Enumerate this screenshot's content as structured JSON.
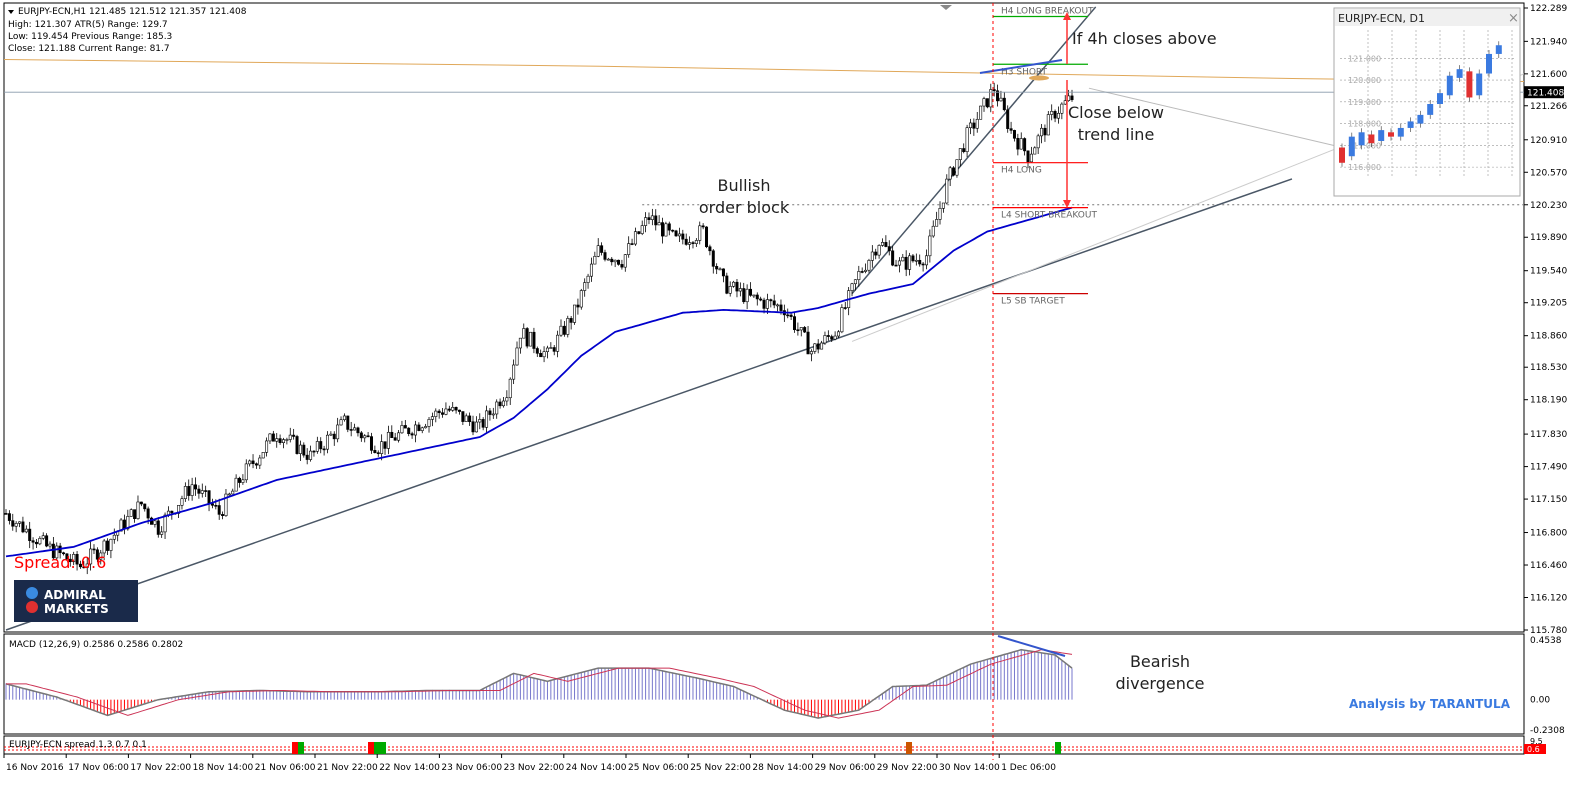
{
  "header": {
    "symbol_line": "EURJPY-ECN,H1  121.485 121.512 121.357 121.408",
    "line2": "High:  121.307   ATR(5) Range: 129.7",
    "line3": "Low:   119.454   Previous Range: 185.3",
    "line4": "Close: 121.188   Current Range: 81.7"
  },
  "colors": {
    "candle": "#000000",
    "ma": "#0000cc",
    "trend": "#4a5766",
    "orange": "#e0a85a",
    "annot_red": "#ff0000",
    "annot_blue": "#3355cc",
    "macd_pos": "#7777cc",
    "macd_neg": "#ff0000",
    "signal": "#cc3355",
    "spread_red": "#ff0000",
    "brand_bg": "#1a2a4a",
    "tarantula": "#3a7ae0"
  },
  "chart_data": {
    "type": "candlestick",
    "symbol": "EURJPY-ECN",
    "timeframe": "H1",
    "ylim": [
      115.78,
      122.289
    ],
    "yticks": [
      "122.289",
      "121.940",
      "121.600",
      "121.266",
      "120.910",
      "120.570",
      "120.230",
      "119.890",
      "119.540",
      "119.205",
      "118.860",
      "118.530",
      "118.190",
      "117.830",
      "117.490",
      "117.150",
      "116.800",
      "116.460",
      "116.120",
      "115.780"
    ],
    "current_price": "121.408",
    "xticks": [
      "16 Nov 2016",
      "17 Nov 06:00",
      "17 Nov 22:00",
      "18 Nov 14:00",
      "21 Nov 06:00",
      "21 Nov 22:00",
      "22 Nov 14:00",
      "23 Nov 06:00",
      "23 Nov 22:00",
      "24 Nov 14:00",
      "25 Nov 06:00",
      "25 Nov 22:00",
      "28 Nov 14:00",
      "29 Nov 06:00",
      "29 Nov 22:00",
      "30 Nov 14:00",
      "1 Dec 06:00"
    ],
    "price_path": [
      [
        0,
        117.0
      ],
      [
        12,
        116.65
      ],
      [
        22,
        116.45
      ],
      [
        30,
        116.7
      ],
      [
        40,
        117.1
      ],
      [
        45,
        116.85
      ],
      [
        55,
        117.3
      ],
      [
        63,
        117.0
      ],
      [
        70,
        117.4
      ],
      [
        80,
        117.85
      ],
      [
        90,
        117.6
      ],
      [
        100,
        117.95
      ],
      [
        110,
        117.7
      ],
      [
        120,
        117.9
      ],
      [
        130,
        118.1
      ],
      [
        140,
        117.9
      ],
      [
        148,
        118.3
      ],
      [
        152,
        118.9
      ],
      [
        160,
        118.65
      ],
      [
        168,
        119.1
      ],
      [
        175,
        119.75
      ],
      [
        182,
        119.65
      ],
      [
        190,
        120.1
      ],
      [
        198,
        119.85
      ],
      [
        206,
        119.95
      ],
      [
        212,
        119.4
      ],
      [
        220,
        119.25
      ],
      [
        230,
        119.15
      ],
      [
        238,
        118.7
      ],
      [
        245,
        118.9
      ],
      [
        252,
        119.5
      ],
      [
        258,
        119.85
      ],
      [
        264,
        119.6
      ],
      [
        272,
        119.7
      ],
      [
        278,
        120.45
      ],
      [
        284,
        120.95
      ],
      [
        292,
        121.45
      ],
      [
        297,
        121.0
      ],
      [
        302,
        120.75
      ],
      [
        310,
        121.2
      ],
      [
        315,
        121.35
      ]
    ],
    "ma_path": [
      [
        0,
        116.55
      ],
      [
        20,
        116.65
      ],
      [
        40,
        116.9
      ],
      [
        60,
        117.1
      ],
      [
        80,
        117.35
      ],
      [
        100,
        117.5
      ],
      [
        120,
        117.65
      ],
      [
        140,
        117.8
      ],
      [
        150,
        118.0
      ],
      [
        160,
        118.3
      ],
      [
        170,
        118.65
      ],
      [
        180,
        118.9
      ],
      [
        200,
        119.1
      ],
      [
        212,
        119.13
      ],
      [
        232,
        119.1
      ],
      [
        240,
        119.15
      ],
      [
        255,
        119.3
      ],
      [
        268,
        119.4
      ],
      [
        280,
        119.75
      ],
      [
        290,
        119.95
      ],
      [
        300,
        120.05
      ],
      [
        315,
        120.2
      ]
    ],
    "trend_lines": [
      {
        "from": [
          0,
          115.78
        ],
        "to": [
          380,
          120.5
        ],
        "name": "long-term trend"
      },
      {
        "from": [
          250,
          119.3
        ],
        "to": [
          322,
          122.3
        ],
        "name": "steep trend"
      }
    ],
    "order_block_level": 120.23,
    "levels": [
      {
        "label": "H4 LONG BREAKOUT",
        "price": 122.2
      },
      {
        "label": "H3 SHORT",
        "price": 121.7
      },
      {
        "label": "H4 LONG",
        "price": 120.67
      },
      {
        "label": "L4 SHORT BREAKOUT",
        "price": 120.2
      },
      {
        "label": "L5 SB TARGET",
        "price": 119.3
      }
    ],
    "annotations": {
      "bullish": "Bullish",
      "order_block": "order block",
      "if4h": "If 4h closes above",
      "close_below_1": "Close below",
      "close_below_2": "trend line",
      "bearish_1": "Bearish",
      "bearish_2": "divergence",
      "spread": "Spread:  0.6"
    },
    "macd": {
      "label": "MACD (12,26,9) 0.2586 0.2586 0.2802",
      "ylim": [
        -0.2308,
        0.4538
      ],
      "yticks": [
        "0.4538",
        "0.00",
        "-0.2308"
      ],
      "path": [
        [
          0,
          0.12
        ],
        [
          15,
          0.02
        ],
        [
          30,
          -0.12
        ],
        [
          45,
          0.0
        ],
        [
          60,
          0.06
        ],
        [
          75,
          0.07
        ],
        [
          90,
          0.06
        ],
        [
          110,
          0.06
        ],
        [
          125,
          0.07
        ],
        [
          140,
          0.07
        ],
        [
          150,
          0.2
        ],
        [
          160,
          0.14
        ],
        [
          175,
          0.24
        ],
        [
          190,
          0.24
        ],
        [
          205,
          0.16
        ],
        [
          215,
          0.1
        ],
        [
          230,
          -0.08
        ],
        [
          240,
          -0.14
        ],
        [
          252,
          -0.08
        ],
        [
          262,
          0.1
        ],
        [
          272,
          0.11
        ],
        [
          285,
          0.27
        ],
        [
          300,
          0.38
        ],
        [
          310,
          0.34
        ],
        [
          315,
          0.24
        ]
      ]
    },
    "spread": {
      "label": "EURJPY-ECN spread 1.3 0.7 0.1",
      "yticks": [
        "9.5",
        "0.6"
      ]
    }
  },
  "inset": {
    "title": "EURJPY-ECN, D1",
    "close": "×",
    "yticks": [
      "121.000",
      "120.000",
      "119.000",
      "118.000",
      "117.000",
      "116.000"
    ]
  },
  "brand": {
    "line1": "ADMIRAL",
    "line2": "MARKETS"
  },
  "credit": "Analysis by TARANTULA"
}
